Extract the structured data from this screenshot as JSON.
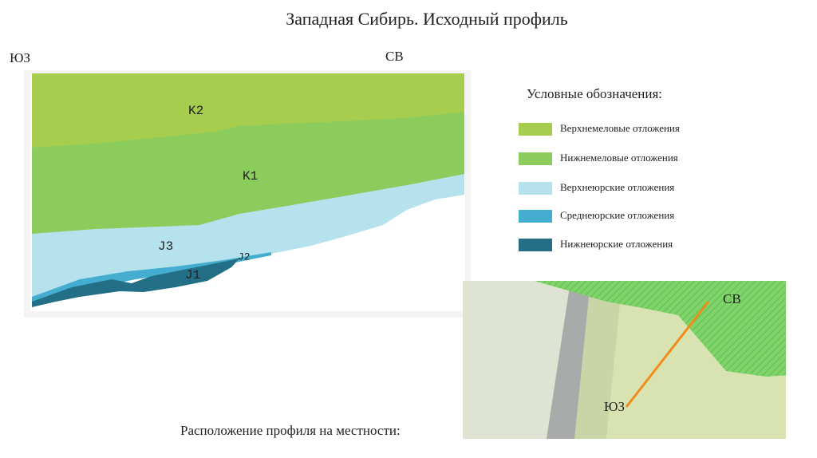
{
  "title": "Западная Сибирь. Исходный профиль",
  "profile": {
    "left_label": "ЮЗ",
    "right_label": "СВ",
    "layers": [
      "K2",
      "K1",
      "J3",
      "J2",
      "J1"
    ]
  },
  "legend": {
    "title": "Условные обозначения:",
    "items": [
      "Верхнемеловые отложения",
      "Нижнемеловые отложения",
      "Верхнеюрские отложения",
      "Среднеюрские отложения",
      "Нижнеюрские отложения"
    ]
  },
  "map": {
    "label_ne": "СВ",
    "label_sw": "ЮЗ",
    "caption": "Расположение профиля на местности:"
  }
}
